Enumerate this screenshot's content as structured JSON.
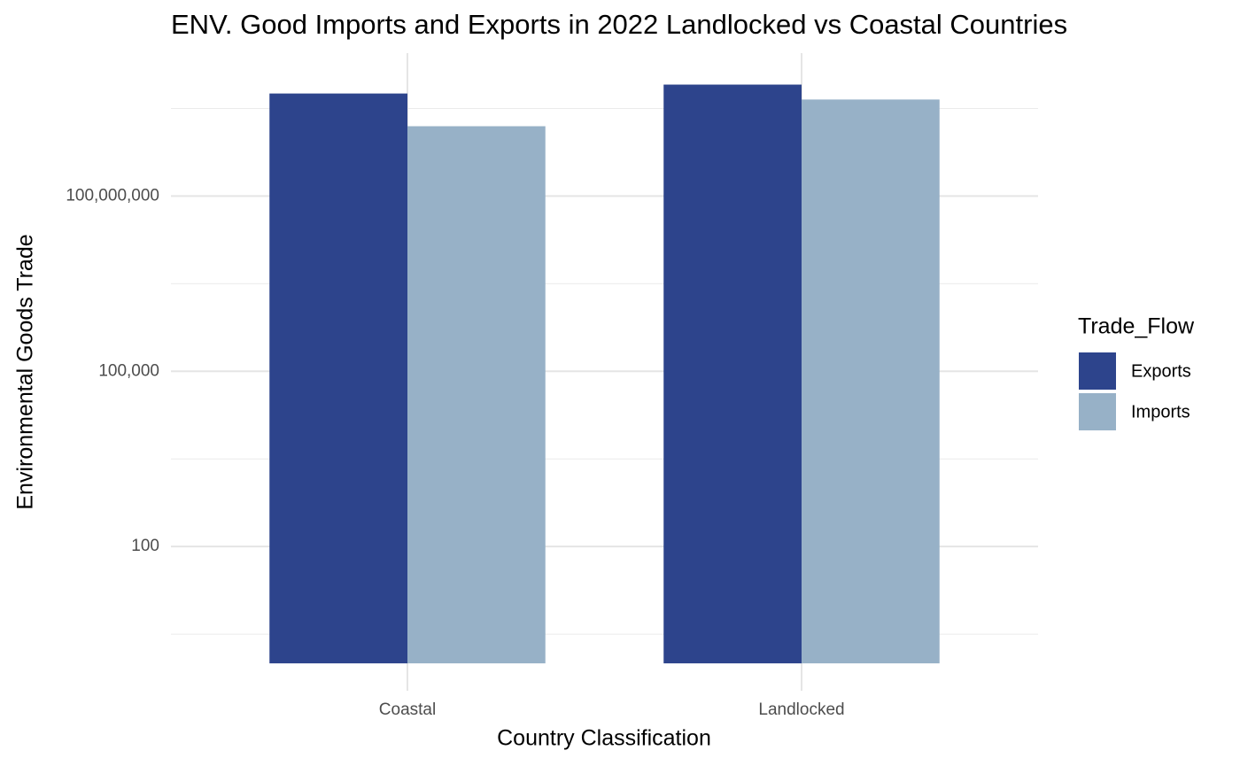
{
  "chart_data": {
    "type": "bar",
    "title": "ENV. Good Imports and Exports in 2022 Landlocked vs Coastal Countries",
    "x_label": "Country Classification",
    "y_label": "Environmental Goods Trade",
    "categories": [
      "Coastal",
      "Landlocked"
    ],
    "series": [
      {
        "name": "Exports",
        "color": "#2d448c",
        "values": [
          5700000000,
          8100000000
        ]
      },
      {
        "name": "Imports",
        "color": "#97b1c7",
        "values": [
          1570000000,
          4500000000
        ]
      }
    ],
    "log_scale": true,
    "ylim": [
      0.34,
      28000000000
    ],
    "yticks": [
      100,
      {
        "value": 100000,
        "label": "100,000"
      },
      {
        "value": 100000000,
        "label": "100,000,000"
      }
    ],
    "minor_grid": [
      3.1623,
      3162.3,
      3162277.7,
      3162277660
    ],
    "grid": true,
    "legend_title": "Trade_Flow",
    "legend_position": "right"
  }
}
